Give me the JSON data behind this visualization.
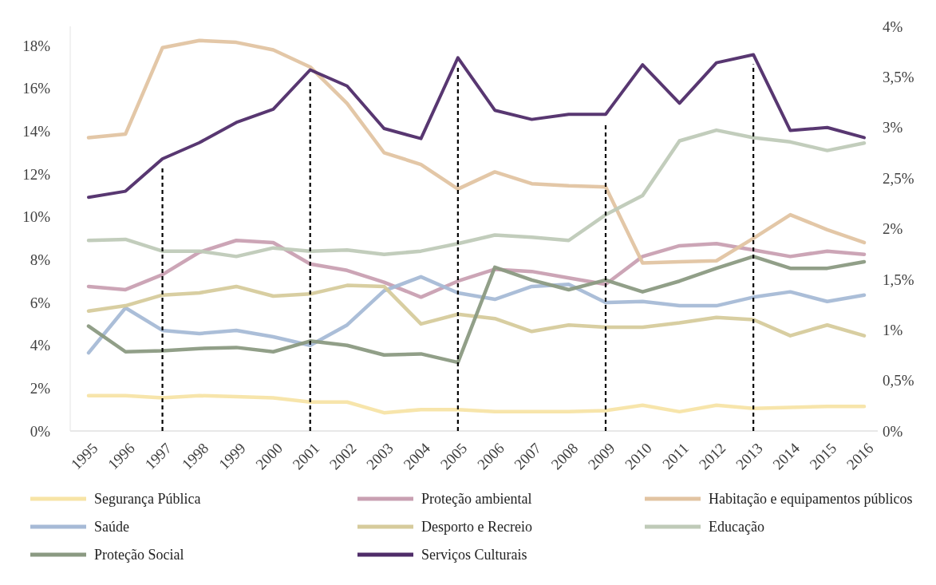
{
  "chart_data": {
    "type": "line",
    "categories": [
      "1995",
      "1996",
      "1997",
      "1998",
      "1999",
      "2000",
      "2001",
      "2002",
      "2003",
      "2004",
      "2005",
      "2006",
      "2007",
      "2008",
      "2009",
      "2010",
      "2011",
      "2012",
      "2013",
      "2014",
      "2015",
      "2016"
    ],
    "series": [
      {
        "name": "Segurança Pública",
        "color": "#f7e4a6",
        "values": [
          1.65,
          1.65,
          1.55,
          1.65,
          1.6,
          1.55,
          1.35,
          1.35,
          0.85,
          1.0,
          1.0,
          0.9,
          0.9,
          0.9,
          0.95,
          1.2,
          0.9,
          1.2,
          1.05,
          1.1,
          1.15,
          1.15
        ]
      },
      {
        "name": "Proteção ambiental",
        "color": "#c9a0b2",
        "values": [
          6.75,
          6.6,
          7.3,
          8.35,
          8.9,
          8.8,
          7.8,
          7.5,
          6.95,
          6.25,
          7.0,
          7.55,
          7.45,
          7.15,
          6.85,
          8.15,
          8.65,
          8.75,
          8.45,
          8.15,
          8.4,
          8.25
        ]
      },
      {
        "name": "Habitação e equipamentos públicos",
        "color": "#e2c4a2",
        "values": [
          13.7,
          13.87,
          17.9,
          18.24,
          18.15,
          17.8,
          17.0,
          15.3,
          13.0,
          12.45,
          11.3,
          12.1,
          11.55,
          11.45,
          11.4,
          7.85,
          7.9,
          7.95,
          9.0,
          10.1,
          9.4,
          8.8
        ]
      },
      {
        "name": "Saúde",
        "color": "#a6bad6",
        "values": [
          3.65,
          5.75,
          4.7,
          4.55,
          4.7,
          4.4,
          4.0,
          4.95,
          6.55,
          7.2,
          6.45,
          6.15,
          6.75,
          6.85,
          6.0,
          6.05,
          5.85,
          5.85,
          6.25,
          6.5,
          6.05,
          6.35
        ]
      },
      {
        "name": "Desporto e Recreio",
        "color": "#d6cb9c",
        "values": [
          5.6,
          5.85,
          6.35,
          6.45,
          6.75,
          6.3,
          6.4,
          6.8,
          6.75,
          5.0,
          5.45,
          5.25,
          4.65,
          4.95,
          4.85,
          4.85,
          5.05,
          5.3,
          5.2,
          4.45,
          4.95,
          4.45
        ]
      },
      {
        "name": "Educação",
        "color": "#bfcab8",
        "values": [
          8.9,
          8.95,
          8.4,
          8.4,
          8.15,
          8.55,
          8.4,
          8.45,
          8.25,
          8.4,
          8.75,
          9.15,
          9.05,
          8.9,
          10.1,
          11.0,
          13.55,
          14.05,
          13.7,
          13.5,
          13.1,
          13.45
        ]
      },
      {
        "name": "Proteção Social",
        "color": "#8b9a82",
        "values": [
          4.9,
          3.7,
          3.75,
          3.85,
          3.9,
          3.7,
          4.2,
          4.0,
          3.55,
          3.6,
          3.2,
          7.65,
          7.05,
          6.6,
          7.05,
          6.5,
          7.0,
          7.6,
          8.15,
          7.6,
          7.6,
          7.9
        ]
      },
      {
        "name": "Serviços Culturais",
        "color": "#4f2c69",
        "axis": "y2",
        "values": [
          2.31,
          2.37,
          2.69,
          2.85,
          3.05,
          3.18,
          3.57,
          3.41,
          2.99,
          2.89,
          3.69,
          3.17,
          3.08,
          3.13,
          3.13,
          3.62,
          3.24,
          3.64,
          3.72,
          2.97,
          3.0,
          2.9
        ]
      }
    ],
    "ylim": [
      0,
      18.9
    ],
    "yticks": [
      {
        "value": 0,
        "label": "0%"
      },
      {
        "value": 2,
        "label": "2%"
      },
      {
        "value": 4,
        "label": "4%"
      },
      {
        "value": 6,
        "label": "6%"
      },
      {
        "value": 8,
        "label": "8%"
      },
      {
        "value": 10,
        "label": "10%"
      },
      {
        "value": 12,
        "label": "12%"
      },
      {
        "value": 14,
        "label": "14%"
      },
      {
        "value": 16,
        "label": "16%"
      },
      {
        "value": 18,
        "label": "18%"
      }
    ],
    "y2lim": [
      0,
      4
    ],
    "y2ticks": [
      {
        "value": 0,
        "label": "0%"
      },
      {
        "value": 0.5,
        "label": "0,5%"
      },
      {
        "value": 1,
        "label": "1%"
      },
      {
        "value": 1.5,
        "label": "1,5%"
      },
      {
        "value": 2,
        "label": "2%"
      },
      {
        "value": 2.5,
        "label": "2,5%"
      },
      {
        "value": 3,
        "label": "3%"
      },
      {
        "value": 3.5,
        "label": "3,5%"
      },
      {
        "value": 4,
        "label": "4%"
      }
    ],
    "ref_lines": [
      {
        "axis": "x",
        "value": "1997",
        "color": "#000000",
        "line_style": "dashed"
      },
      {
        "axis": "x",
        "value": "2001",
        "color": "#000000",
        "line_style": "dashed"
      },
      {
        "axis": "x",
        "value": "2005",
        "color": "#000000",
        "line_style": "dashed"
      },
      {
        "axis": "x",
        "value": "2009",
        "color": "#000000",
        "line_style": "dashed"
      },
      {
        "axis": "x",
        "value": "2013",
        "color": "#000000",
        "line_style": "dashed"
      }
    ],
    "grid": false,
    "legend": "bottom",
    "marker": "none",
    "line_style": "solid"
  }
}
